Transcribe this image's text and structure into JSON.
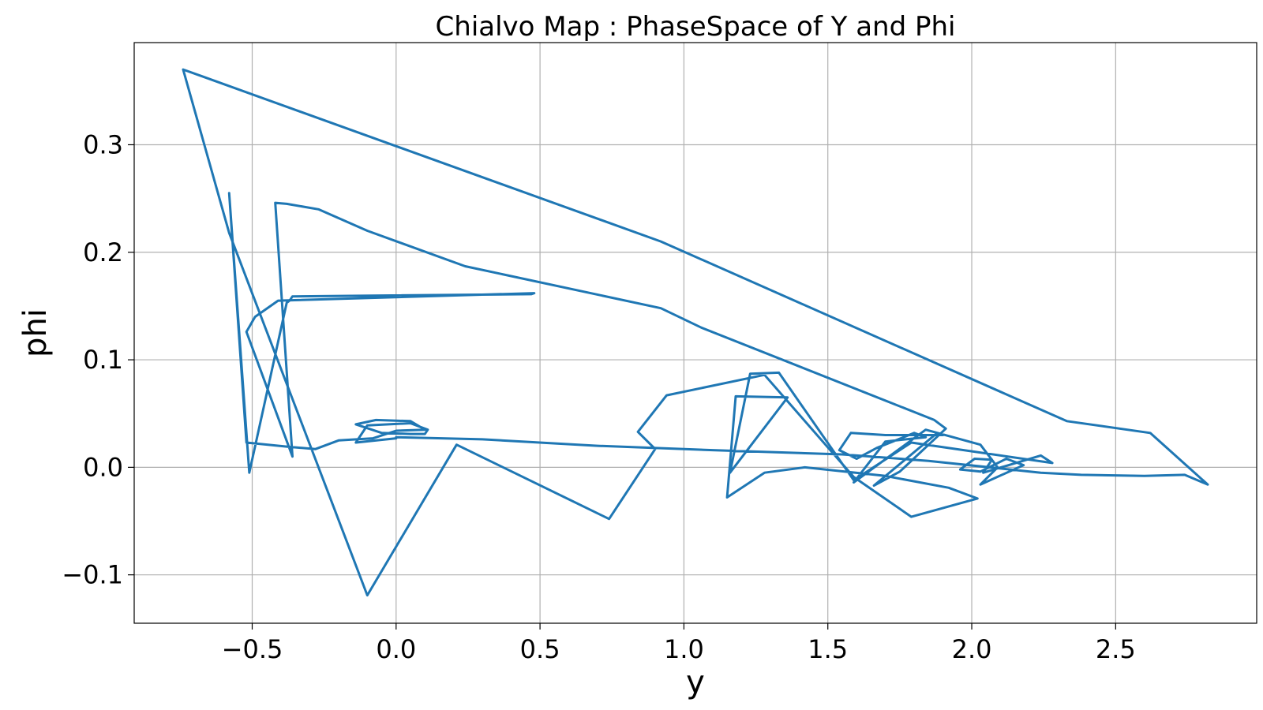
{
  "chart_data": {
    "type": "line",
    "title": "Chialvo Map : PhaseSpace of Y and Phi",
    "xlabel": "y",
    "ylabel": "phi",
    "xlim": [
      -0.91,
      2.99
    ],
    "ylim": [
      -0.145,
      0.395
    ],
    "xticks": [
      -0.5,
      0.0,
      0.5,
      1.0,
      1.5,
      2.0,
      2.5
    ],
    "xtick_labels": [
      "−0.5",
      "0.0",
      "0.5",
      "1.0",
      "1.5",
      "2.0",
      "2.5"
    ],
    "yticks": [
      -0.1,
      0.0,
      0.1,
      0.2,
      0.3
    ],
    "ytick_labels": [
      "−0.1",
      "0.0",
      "0.1",
      "0.2",
      "0.3"
    ],
    "grid": true,
    "series": [
      {
        "color": "#1f77b4",
        "x": [
          0.0,
          -0.14,
          -0.1,
          0.05,
          0.11,
          0.1,
          0.05,
          -0.05,
          -0.14,
          -0.07,
          0.05,
          0.1,
          0.0,
          -0.08,
          -0.2,
          -0.28,
          -0.37,
          -0.52,
          -0.58,
          -0.51,
          -0.38,
          -0.37,
          -0.36,
          0.47,
          0.48,
          -0.41,
          -0.49,
          -0.52,
          -0.36,
          -0.42,
          -0.38,
          -0.27,
          -0.1,
          0.24,
          0.92,
          1.06,
          1.87,
          1.91,
          1.75,
          1.66,
          1.88,
          1.9,
          1.7,
          1.58,
          1.54,
          1.6,
          1.67,
          1.8,
          1.84,
          1.7,
          1.59,
          1.84,
          2.03,
          2.09,
          2.03,
          2.18,
          2.12,
          2.03,
          1.96,
          2.01,
          2.07,
          2.04,
          2.24,
          2.28,
          1.79,
          1.59,
          1.33,
          1.23,
          1.16,
          1.36,
          1.18,
          1.15,
          1.28,
          1.42,
          1.7,
          1.92,
          2.02,
          1.79,
          1.59,
          1.28,
          0.94,
          0.84,
          0.9,
          0.74,
          0.21,
          -0.1,
          -0.58,
          -0.74,
          0.92,
          2.33,
          2.62,
          2.82,
          2.74,
          2.6,
          2.38,
          2.24,
          1.85,
          1.55,
          1.1,
          0.7,
          0.3,
          0.0
        ],
        "y": [
          0.027,
          0.023,
          0.039,
          0.041,
          0.035,
          0.031,
          0.031,
          0.032,
          0.04,
          0.044,
          0.043,
          0.035,
          0.034,
          0.027,
          0.025,
          0.017,
          0.019,
          0.023,
          0.255,
          -0.005,
          0.153,
          0.155,
          0.159,
          0.161,
          0.162,
          0.155,
          0.14,
          0.126,
          0.01,
          0.246,
          0.245,
          0.24,
          0.22,
          0.187,
          0.148,
          0.13,
          0.044,
          0.036,
          -0.004,
          -0.017,
          0.032,
          0.03,
          0.03,
          0.032,
          0.016,
          0.008,
          0.018,
          0.032,
          0.028,
          0.024,
          -0.014,
          0.035,
          0.021,
          0.0,
          -0.016,
          0.002,
          0.008,
          -0.004,
          -0.002,
          0.008,
          0.007,
          -0.005,
          0.011,
          0.004,
          0.023,
          -0.012,
          0.088,
          0.087,
          -0.005,
          0.065,
          0.066,
          -0.028,
          -0.005,
          0.0,
          -0.008,
          -0.019,
          -0.029,
          -0.046,
          -0.009,
          0.086,
          0.067,
          0.033,
          0.017,
          -0.048,
          0.021,
          -0.119,
          0.218,
          0.37,
          0.21,
          0.043,
          0.032,
          -0.016,
          -0.007,
          -0.008,
          -0.007,
          -0.005,
          0.006,
          0.012,
          0.016,
          0.02,
          0.026,
          0.028
        ]
      }
    ]
  }
}
